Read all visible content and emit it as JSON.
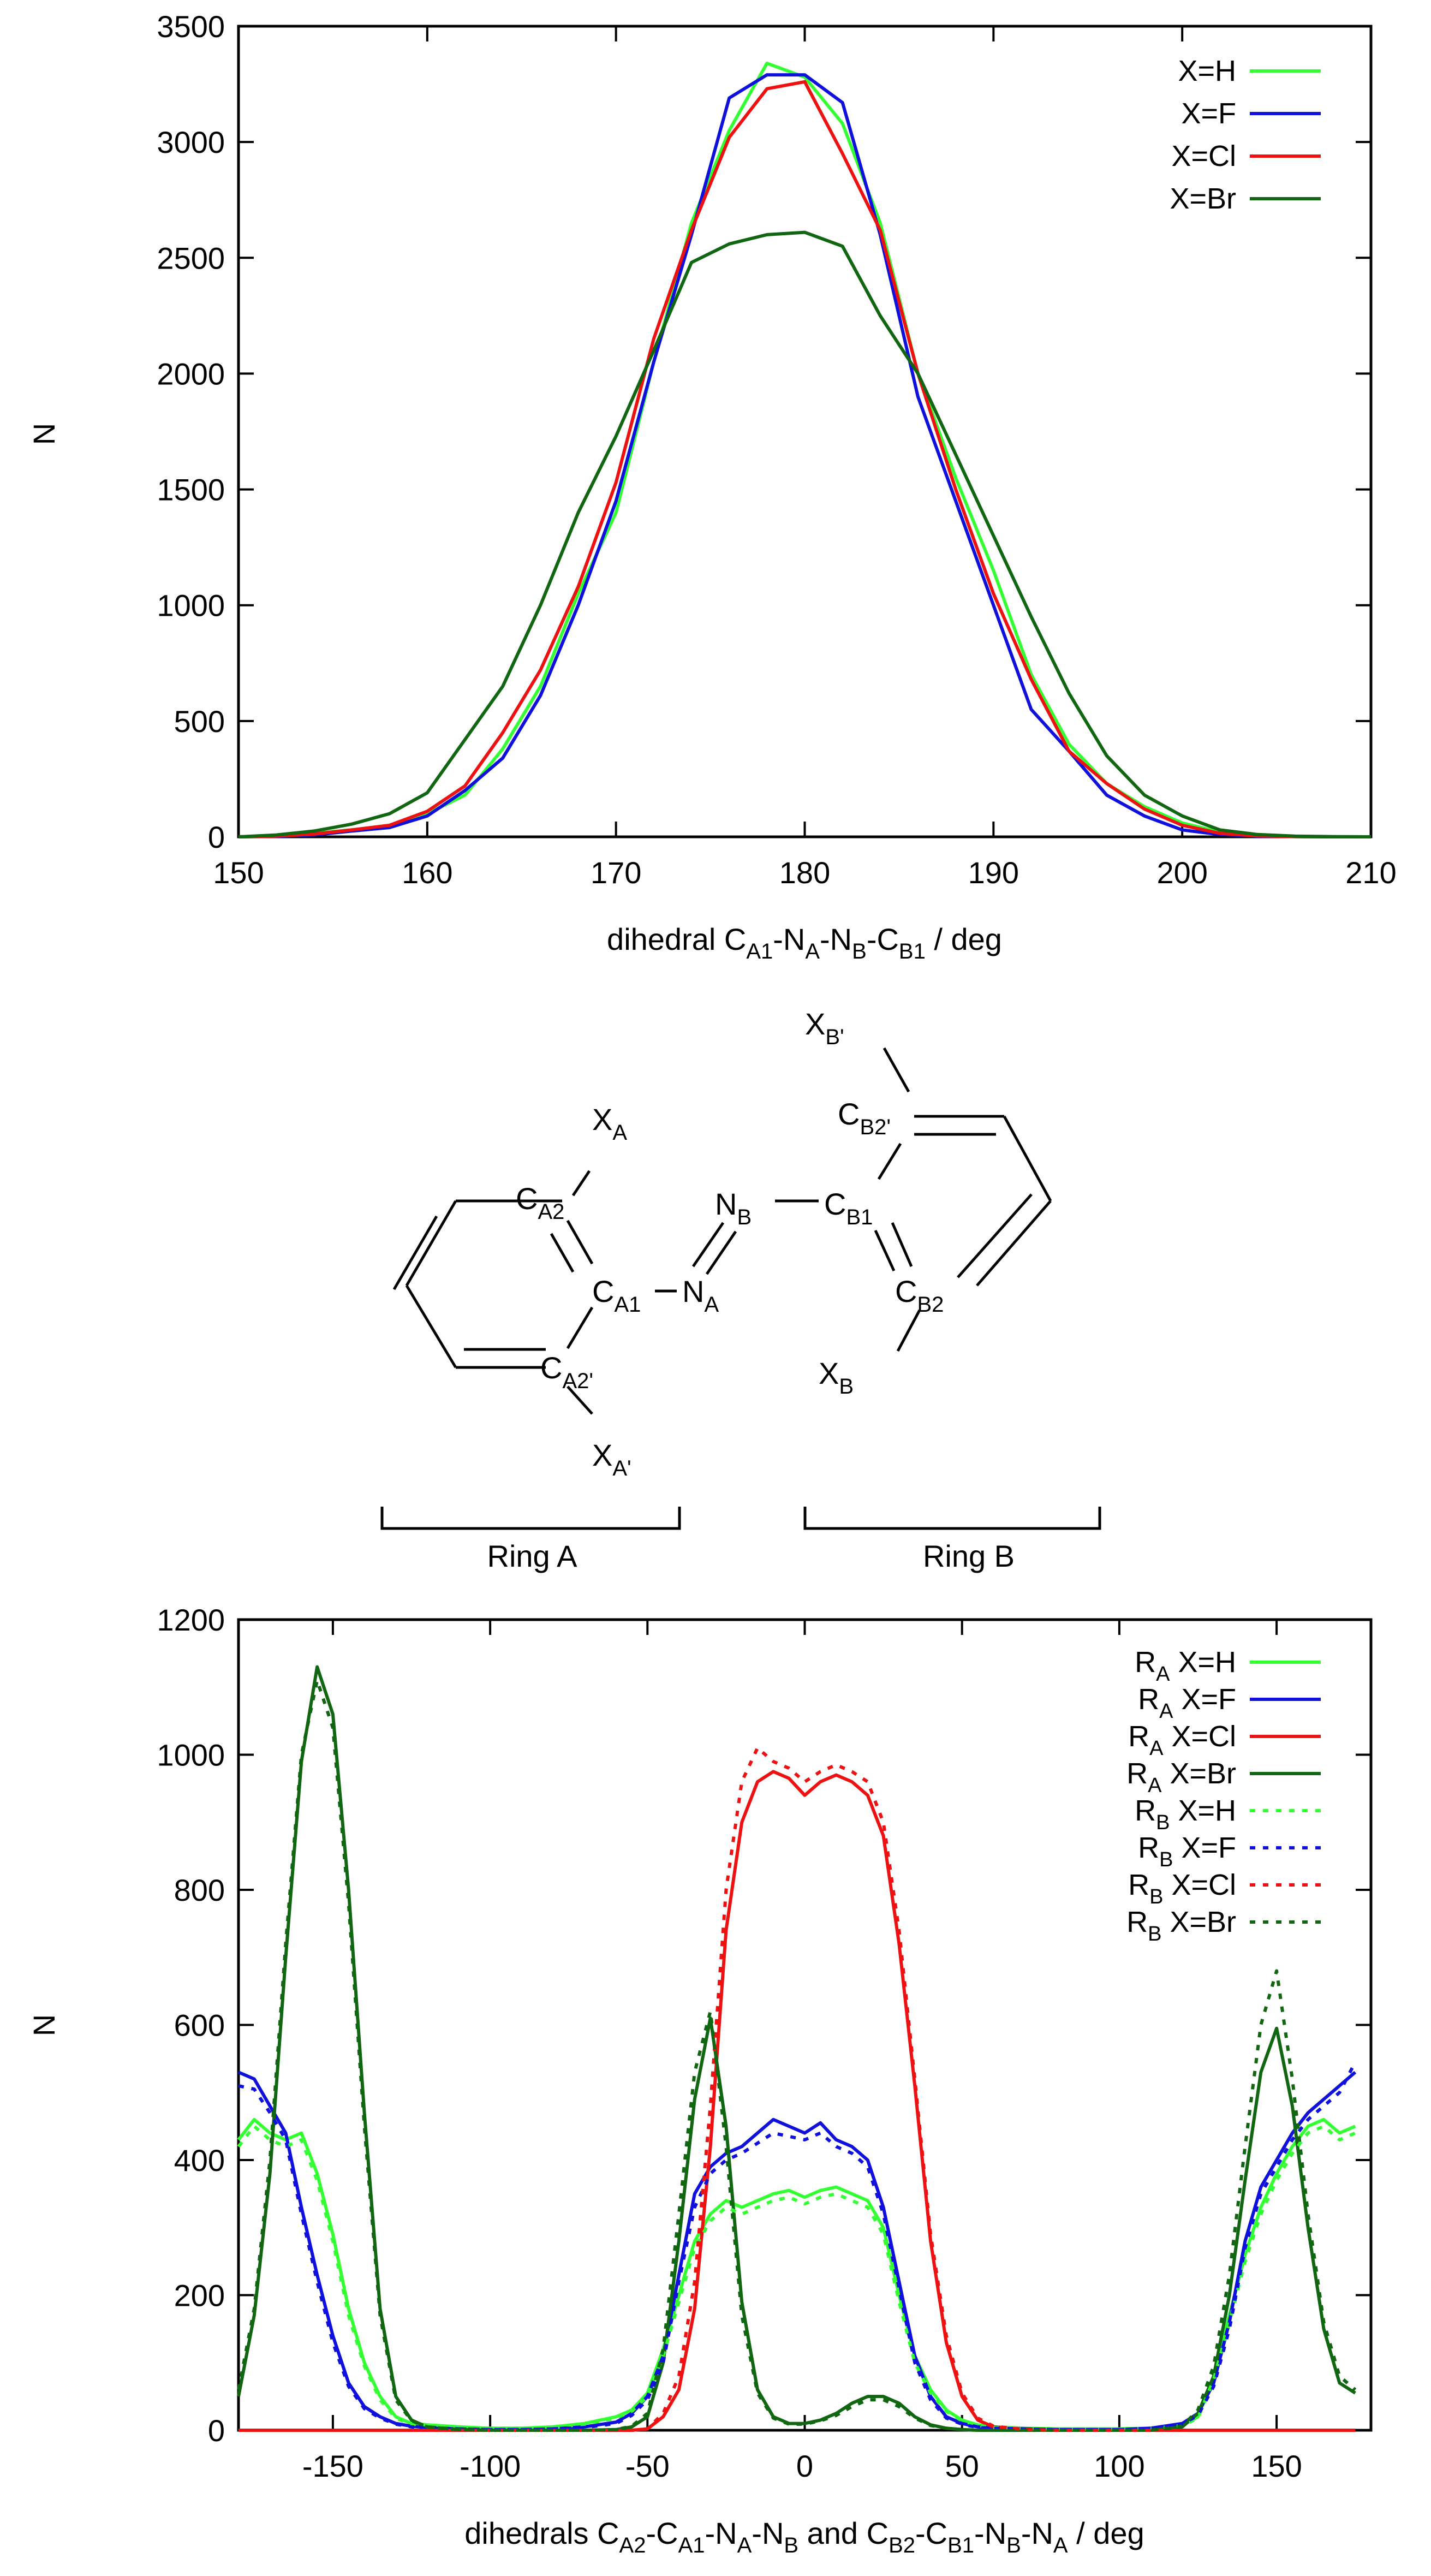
{
  "chart_data": [
    {
      "type": "line",
      "xlabel": "dihedral C_A1-N_A-N_B-C_B1 / deg",
      "xlabel_parts": [
        {
          "t": "dihedral C"
        },
        {
          "t": "A1",
          "sub": true
        },
        {
          "t": "-N"
        },
        {
          "t": "A",
          "sub": true
        },
        {
          "t": "-N"
        },
        {
          "t": "B",
          "sub": true
        },
        {
          "t": "-C"
        },
        {
          "t": "B1",
          "sub": true
        },
        {
          "t": " / deg"
        }
      ],
      "ylabel": "N",
      "xlim": [
        150,
        210
      ],
      "ylim": [
        0,
        3500
      ],
      "xticks": [
        150,
        160,
        170,
        180,
        190,
        200,
        210
      ],
      "yticks": [
        0,
        500,
        1000,
        1500,
        2000,
        2500,
        3000,
        3500
      ],
      "legend_position": "top-right",
      "x": [
        150,
        152,
        154,
        156,
        158,
        160,
        162,
        164,
        166,
        168,
        170,
        172,
        174,
        176,
        178,
        180,
        182,
        184,
        186,
        188,
        190,
        192,
        194,
        196,
        198,
        200,
        202,
        204,
        206,
        208,
        210
      ],
      "series": [
        {
          "name": "X=H",
          "color": "#33ff33",
          "dash": false,
          "values": [
            0,
            5,
            15,
            30,
            50,
            100,
            180,
            380,
            650,
            1050,
            1400,
            2050,
            2650,
            3050,
            3340,
            3280,
            3080,
            2650,
            2000,
            1550,
            1150,
            700,
            400,
            230,
            130,
            60,
            20,
            5,
            2,
            0,
            0
          ]
        },
        {
          "name": "X=F",
          "color": "#1010dd",
          "dash": false,
          "values": [
            0,
            2,
            8,
            25,
            40,
            90,
            200,
            340,
            610,
            1000,
            1450,
            2050,
            2600,
            3190,
            3290,
            3290,
            3170,
            2600,
            1900,
            1450,
            1000,
            550,
            370,
            180,
            90,
            30,
            10,
            3,
            1,
            0,
            0
          ]
        },
        {
          "name": "X=Cl",
          "color": "#ee1111",
          "dash": false,
          "values": [
            0,
            3,
            12,
            30,
            50,
            110,
            220,
            450,
            720,
            1080,
            1530,
            2150,
            2620,
            3020,
            3230,
            3260,
            2950,
            2620,
            2000,
            1500,
            1050,
            680,
            370,
            230,
            120,
            50,
            15,
            4,
            1,
            0,
            0
          ]
        },
        {
          "name": "X=Br",
          "color": "#116611",
          "dash": false,
          "values": [
            0,
            8,
            25,
            55,
            100,
            190,
            420,
            650,
            1000,
            1400,
            1730,
            2100,
            2480,
            2560,
            2600,
            2610,
            2550,
            2250,
            2000,
            1650,
            1300,
            950,
            620,
            350,
            180,
            90,
            30,
            10,
            3,
            1,
            0
          ]
        }
      ]
    },
    {
      "type": "line",
      "xlabel": "dihedrals C_A2-C_A1-N_A-N_B and C_B2-C_B1-N_B-N_A / deg",
      "xlabel_parts": [
        {
          "t": "dihedrals C"
        },
        {
          "t": "A2",
          "sub": true
        },
        {
          "t": "-C"
        },
        {
          "t": "A1",
          "sub": true
        },
        {
          "t": "-N"
        },
        {
          "t": "A",
          "sub": true
        },
        {
          "t": "-N"
        },
        {
          "t": "B",
          "sub": true
        },
        {
          "t": " and  C"
        },
        {
          "t": "B2",
          "sub": true
        },
        {
          "t": "-C"
        },
        {
          "t": "B1",
          "sub": true
        },
        {
          "t": "-N"
        },
        {
          "t": "B",
          "sub": true
        },
        {
          "t": "-N"
        },
        {
          "t": "A",
          "sub": true
        },
        {
          "t": " / deg"
        }
      ],
      "ylabel": "N",
      "xlim": [
        -180,
        180
      ],
      "ylim": [
        0,
        1200
      ],
      "xticks": [
        -150,
        -100,
        -50,
        0,
        50,
        100,
        150
      ],
      "yticks": [
        0,
        200,
        400,
        600,
        800,
        1000,
        1200
      ],
      "legend_position": "top-right",
      "x": [
        -180,
        -175,
        -170,
        -165,
        -160,
        -155,
        -150,
        -145,
        -140,
        -135,
        -130,
        -125,
        -120,
        -110,
        -100,
        -90,
        -80,
        -70,
        -60,
        -55,
        -50,
        -45,
        -40,
        -35,
        -30,
        -25,
        -20,
        -15,
        -10,
        -5,
        0,
        5,
        10,
        15,
        20,
        25,
        30,
        35,
        40,
        45,
        50,
        55,
        60,
        70,
        80,
        90,
        100,
        110,
        120,
        125,
        130,
        135,
        140,
        145,
        150,
        155,
        160,
        165,
        170,
        175
      ],
      "series": [
        {
          "name": "R_A X=H",
          "label_parts": [
            {
              "t": "R"
            },
            {
              "t": "A",
              "sub": true
            },
            {
              "t": " X=H"
            }
          ],
          "color": "#33ff33",
          "dash": false,
          "values": [
            430,
            460,
            440,
            430,
            440,
            380,
            290,
            180,
            100,
            50,
            20,
            10,
            8,
            5,
            3,
            3,
            5,
            10,
            20,
            30,
            55,
            120,
            200,
            280,
            320,
            340,
            330,
            340,
            350,
            355,
            345,
            355,
            360,
            350,
            340,
            300,
            200,
            110,
            60,
            30,
            15,
            8,
            5,
            3,
            2,
            2,
            2,
            3,
            8,
            20,
            80,
            170,
            260,
            330,
            380,
            420,
            450,
            460,
            440,
            450
          ]
        },
        {
          "name": "R_A X=F",
          "label_parts": [
            {
              "t": "R"
            },
            {
              "t": "A",
              "sub": true
            },
            {
              "t": " X=F"
            }
          ],
          "color": "#1010dd",
          "dash": false,
          "values": [
            530,
            520,
            480,
            440,
            330,
            230,
            140,
            70,
            35,
            20,
            10,
            6,
            4,
            2,
            1,
            1,
            2,
            5,
            12,
            25,
            50,
            110,
            230,
            350,
            390,
            410,
            420,
            440,
            460,
            450,
            440,
            455,
            430,
            420,
            400,
            330,
            220,
            110,
            50,
            20,
            10,
            5,
            3,
            2,
            1,
            1,
            1,
            3,
            10,
            25,
            70,
            160,
            280,
            360,
            400,
            440,
            470,
            490,
            510,
            530
          ]
        },
        {
          "name": "R_A X=Cl",
          "label_parts": [
            {
              "t": "R"
            },
            {
              "t": "A",
              "sub": true
            },
            {
              "t": " X=Cl"
            }
          ],
          "color": "#ee1111",
          "dash": false,
          "values": [
            0,
            0,
            0,
            0,
            0,
            0,
            0,
            0,
            0,
            0,
            0,
            0,
            0,
            0,
            0,
            0,
            0,
            0,
            0,
            0,
            2,
            20,
            60,
            180,
            420,
            740,
            900,
            960,
            975,
            965,
            940,
            960,
            970,
            960,
            940,
            880,
            720,
            510,
            280,
            130,
            50,
            15,
            5,
            1,
            0,
            0,
            0,
            0,
            0,
            0,
            0,
            0,
            0,
            0,
            0,
            0,
            0,
            0,
            0,
            0
          ]
        },
        {
          "name": "R_A X=Br",
          "label_parts": [
            {
              "t": "R"
            },
            {
              "t": "A",
              "sub": true
            },
            {
              "t": " X=Br"
            }
          ],
          "color": "#116611",
          "dash": false,
          "values": [
            50,
            170,
            380,
            700,
            990,
            1130,
            1060,
            800,
            470,
            180,
            50,
            15,
            5,
            1,
            0,
            0,
            0,
            0,
            1,
            5,
            20,
            100,
            280,
            490,
            610,
            450,
            190,
            60,
            20,
            10,
            10,
            15,
            25,
            40,
            50,
            50,
            40,
            20,
            8,
            3,
            1,
            0,
            0,
            0,
            0,
            0,
            0,
            0,
            5,
            25,
            80,
            200,
            370,
            530,
            595,
            480,
            300,
            150,
            70,
            55
          ]
        },
        {
          "name": "R_B X=H",
          "label_parts": [
            {
              "t": "R"
            },
            {
              "t": "B",
              "sub": true
            },
            {
              "t": " X=H"
            }
          ],
          "color": "#33ff33",
          "dash": true,
          "values": [
            420,
            450,
            430,
            420,
            430,
            370,
            280,
            170,
            95,
            45,
            18,
            9,
            7,
            4,
            3,
            3,
            4,
            9,
            18,
            28,
            50,
            110,
            190,
            270,
            310,
            330,
            320,
            330,
            340,
            345,
            335,
            345,
            350,
            340,
            330,
            290,
            190,
            100,
            55,
            28,
            14,
            7,
            4,
            3,
            2,
            2,
            2,
            3,
            7,
            18,
            75,
            160,
            250,
            320,
            370,
            410,
            440,
            450,
            430,
            440
          ]
        },
        {
          "name": "R_B X=F",
          "label_parts": [
            {
              "t": "R"
            },
            {
              "t": "B",
              "sub": true
            },
            {
              "t": " X=F"
            }
          ],
          "color": "#1010dd",
          "dash": true,
          "values": [
            510,
            505,
            470,
            430,
            320,
            220,
            130,
            65,
            32,
            18,
            9,
            5,
            3,
            2,
            1,
            1,
            2,
            4,
            10,
            22,
            45,
            100,
            220,
            330,
            380,
            400,
            410,
            425,
            440,
            435,
            430,
            440,
            420,
            410,
            390,
            320,
            210,
            100,
            45,
            18,
            9,
            4,
            3,
            2,
            1,
            1,
            1,
            3,
            9,
            22,
            65,
            150,
            270,
            350,
            390,
            430,
            460,
            480,
            500,
            545
          ]
        },
        {
          "name": "R_B X=Cl",
          "label_parts": [
            {
              "t": "R"
            },
            {
              "t": "B",
              "sub": true
            },
            {
              "t": " X=Cl"
            }
          ],
          "color": "#ee1111",
          "dash": true,
          "values": [
            0,
            0,
            0,
            0,
            0,
            0,
            0,
            0,
            0,
            0,
            0,
            0,
            0,
            0,
            0,
            0,
            0,
            0,
            0,
            0,
            2,
            25,
            80,
            220,
            480,
            800,
            960,
            1010,
            990,
            980,
            960,
            975,
            985,
            975,
            960,
            900,
            740,
            520,
            290,
            140,
            55,
            18,
            6,
            1,
            0,
            0,
            0,
            0,
            0,
            0,
            0,
            0,
            0,
            0,
            0,
            0,
            0,
            0,
            0,
            0
          ]
        },
        {
          "name": "R_B X=Br",
          "label_parts": [
            {
              "t": "R"
            },
            {
              "t": "B",
              "sub": true
            },
            {
              "t": " X=Br"
            }
          ],
          "color": "#116611",
          "dash": true,
          "values": [
            60,
            180,
            400,
            720,
            1000,
            1110,
            1040,
            780,
            450,
            170,
            45,
            14,
            5,
            1,
            0,
            0,
            0,
            0,
            1,
            6,
            25,
            120,
            320,
            530,
            620,
            420,
            170,
            55,
            18,
            9,
            9,
            14,
            22,
            35,
            45,
            45,
            35,
            18,
            7,
            3,
            1,
            0,
            0,
            0,
            0,
            0,
            0,
            0,
            6,
            30,
            95,
            230,
            420,
            600,
            680,
            520,
            320,
            160,
            80,
            60
          ]
        }
      ]
    }
  ],
  "molecule": {
    "labels": {
      "xa": {
        "main": "X",
        "sub": "A"
      },
      "ca2": {
        "main": "C",
        "sub": "A2"
      },
      "ca1": {
        "main": "C",
        "sub": "A1"
      },
      "na": {
        "main": "N",
        "sub": "A"
      },
      "ca2p": {
        "main": "C",
        "sub": "A2'"
      },
      "xap": {
        "main": "X",
        "sub": "A'"
      },
      "nb": {
        "main": "N",
        "sub": "B"
      },
      "cb1": {
        "main": "C",
        "sub": "B1"
      },
      "cb2p": {
        "main": "C",
        "sub": "B2'"
      },
      "xbp": {
        "main": "X",
        "sub": "B'"
      },
      "cb2": {
        "main": "C",
        "sub": "B2"
      },
      "xb": {
        "main": "X",
        "sub": "B"
      }
    },
    "ring_a_label": "Ring  A",
    "ring_b_label": "Ring  B"
  }
}
